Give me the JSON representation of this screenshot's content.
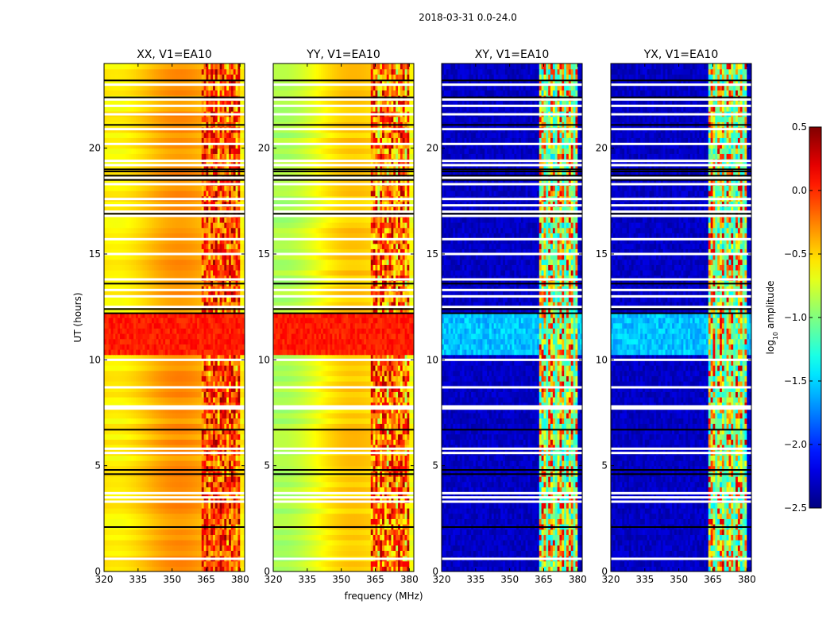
{
  "chart_data": {
    "type": "heatmap",
    "suptitle": "2018-03-31 0.0-24.0",
    "xlabel": "frequency (MHz)",
    "ylabel": "UT (hours)",
    "xlim": [
      320,
      382
    ],
    "ylim": [
      0,
      24
    ],
    "xticks": [
      320,
      335,
      350,
      365,
      380
    ],
    "yticks": [
      0,
      5,
      10,
      15,
      20
    ],
    "panels": [
      {
        "title": "XX, V1=EA10",
        "polarization": "parallel",
        "base": -0.45,
        "rfi_band_min": -0.5,
        "rfi_band_max": 0.45
      },
      {
        "title": "YY, V1=EA10",
        "polarization": "parallel",
        "base": -0.75,
        "rfi_band_min": -0.7,
        "rfi_band_max": 0.4
      },
      {
        "title": "XY, V1=EA10",
        "polarization": "cross",
        "base": -2.4,
        "rfi_band_min": -1.5,
        "rfi_band_max": 0.3
      },
      {
        "title": "YX, V1=EA10",
        "polarization": "cross",
        "base": -2.4,
        "rfi_band_min": -1.5,
        "rfi_band_max": 0.3
      }
    ],
    "rfi_band_mhz": [
      363,
      380
    ],
    "bright_interval_hours": [
      10.2,
      12.3
    ],
    "colorbar": {
      "label": "log10 amplitude",
      "label_main": "log",
      "label_sub": "10",
      "label_rest": " amplitude",
      "vmin": -2.5,
      "vmax": 0.5,
      "ticks": [
        0.5,
        0.0,
        -0.5,
        -1.0,
        -1.5,
        -2.0,
        -2.5
      ],
      "tick_labels": [
        "0.5",
        "0.0",
        "−0.5",
        "−1.0",
        "−1.5",
        "−2.0",
        "−2.5"
      ],
      "colormap": "jet"
    },
    "flag_rows_white_hours": [
      0.6,
      3.3,
      3.5,
      3.7,
      5.6,
      5.8,
      7.7,
      7.8,
      8.7,
      10.0,
      12.5,
      13.0,
      13.3,
      13.8,
      15.0,
      15.7,
      16.8,
      17.0,
      17.3,
      17.6,
      18.3,
      18.6,
      19.2,
      19.4,
      20.2,
      20.9,
      21.6,
      22.0,
      22.3,
      23.0
    ],
    "flag_rows_black_hours": [
      2.1,
      4.6,
      4.8,
      6.7,
      12.2,
      12.4,
      13.6,
      16.9,
      18.5,
      18.7,
      18.9,
      19.0,
      21.1,
      22.4,
      23.2
    ]
  }
}
